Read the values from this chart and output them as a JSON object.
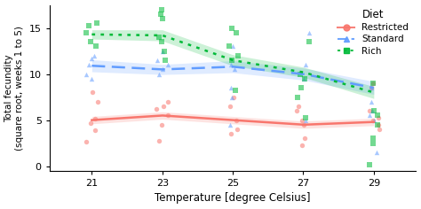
{
  "temperatures": [
    21,
    23,
    25,
    27,
    29
  ],
  "restricted_mean": [
    5.0,
    5.5,
    5.0,
    4.5,
    4.8
  ],
  "standard_mean": [
    10.9,
    10.5,
    10.8,
    10.0,
    8.5
  ],
  "rich_mean": [
    14.3,
    14.2,
    11.5,
    10.2,
    8.0
  ],
  "restricted_se": [
    0.4,
    0.4,
    0.4,
    0.4,
    0.4
  ],
  "standard_se": [
    0.65,
    0.55,
    0.65,
    0.65,
    0.7
  ],
  "rich_se": [
    0.5,
    0.6,
    0.6,
    0.55,
    0.65
  ],
  "restricted_points": {
    "21": [
      2.7,
      3.9,
      4.7,
      5.2,
      7.0,
      8.0
    ],
    "23": [
      2.8,
      4.5,
      5.5,
      6.2,
      6.5,
      7.0
    ],
    "25": [
      3.5,
      4.0,
      5.0,
      6.5,
      7.5
    ],
    "27": [
      2.3,
      3.0,
      4.5,
      5.0,
      6.0,
      6.5
    ],
    "29": [
      4.0,
      4.5,
      5.0,
      5.3,
      6.0,
      8.5,
      9.0
    ]
  },
  "standard_points": {
    "21": [
      9.5,
      10.0,
      11.0,
      11.7,
      12.0
    ],
    "23": [
      10.0,
      10.5,
      11.0,
      11.5,
      12.5
    ],
    "25": [
      4.5,
      7.5,
      8.5,
      10.5,
      11.0,
      13.0
    ],
    "27": [
      5.0,
      9.5,
      11.0,
      14.5
    ],
    "29": [
      1.5,
      5.0,
      5.5,
      6.0,
      7.0,
      8.5
    ]
  },
  "rich_points": {
    "21": [
      13.0,
      13.5,
      14.5,
      15.2,
      15.5
    ],
    "23": [
      11.5,
      12.5,
      13.5,
      14.0,
      16.0,
      16.5,
      17.0
    ],
    "25": [
      8.2,
      11.5,
      12.0,
      13.0,
      14.5,
      15.0
    ],
    "27": [
      5.3,
      7.5,
      8.5,
      9.5,
      10.0,
      13.5
    ],
    "29": [
      0.2,
      2.5,
      3.0,
      4.5,
      5.5,
      6.0,
      9.0
    ]
  },
  "restricted_color": "#F8766D",
  "standard_color": "#619CFF",
  "rich_color": "#00BA38",
  "xlabel": "Temperature [degree Celsius]",
  "ylabel": "Total fecundity\n(square root, weeks 1 to 5)",
  "ylim": [
    -0.5,
    17.5
  ],
  "yticks": [
    0,
    5,
    10,
    15
  ],
  "xticks": [
    21,
    23,
    25,
    27,
    29
  ],
  "xlim": [
    19.8,
    30.2
  ],
  "legend_title": "Diet",
  "legend_labels": [
    "Restricted",
    "Standard",
    "Rich"
  ],
  "background_color": "#FFFFFF"
}
